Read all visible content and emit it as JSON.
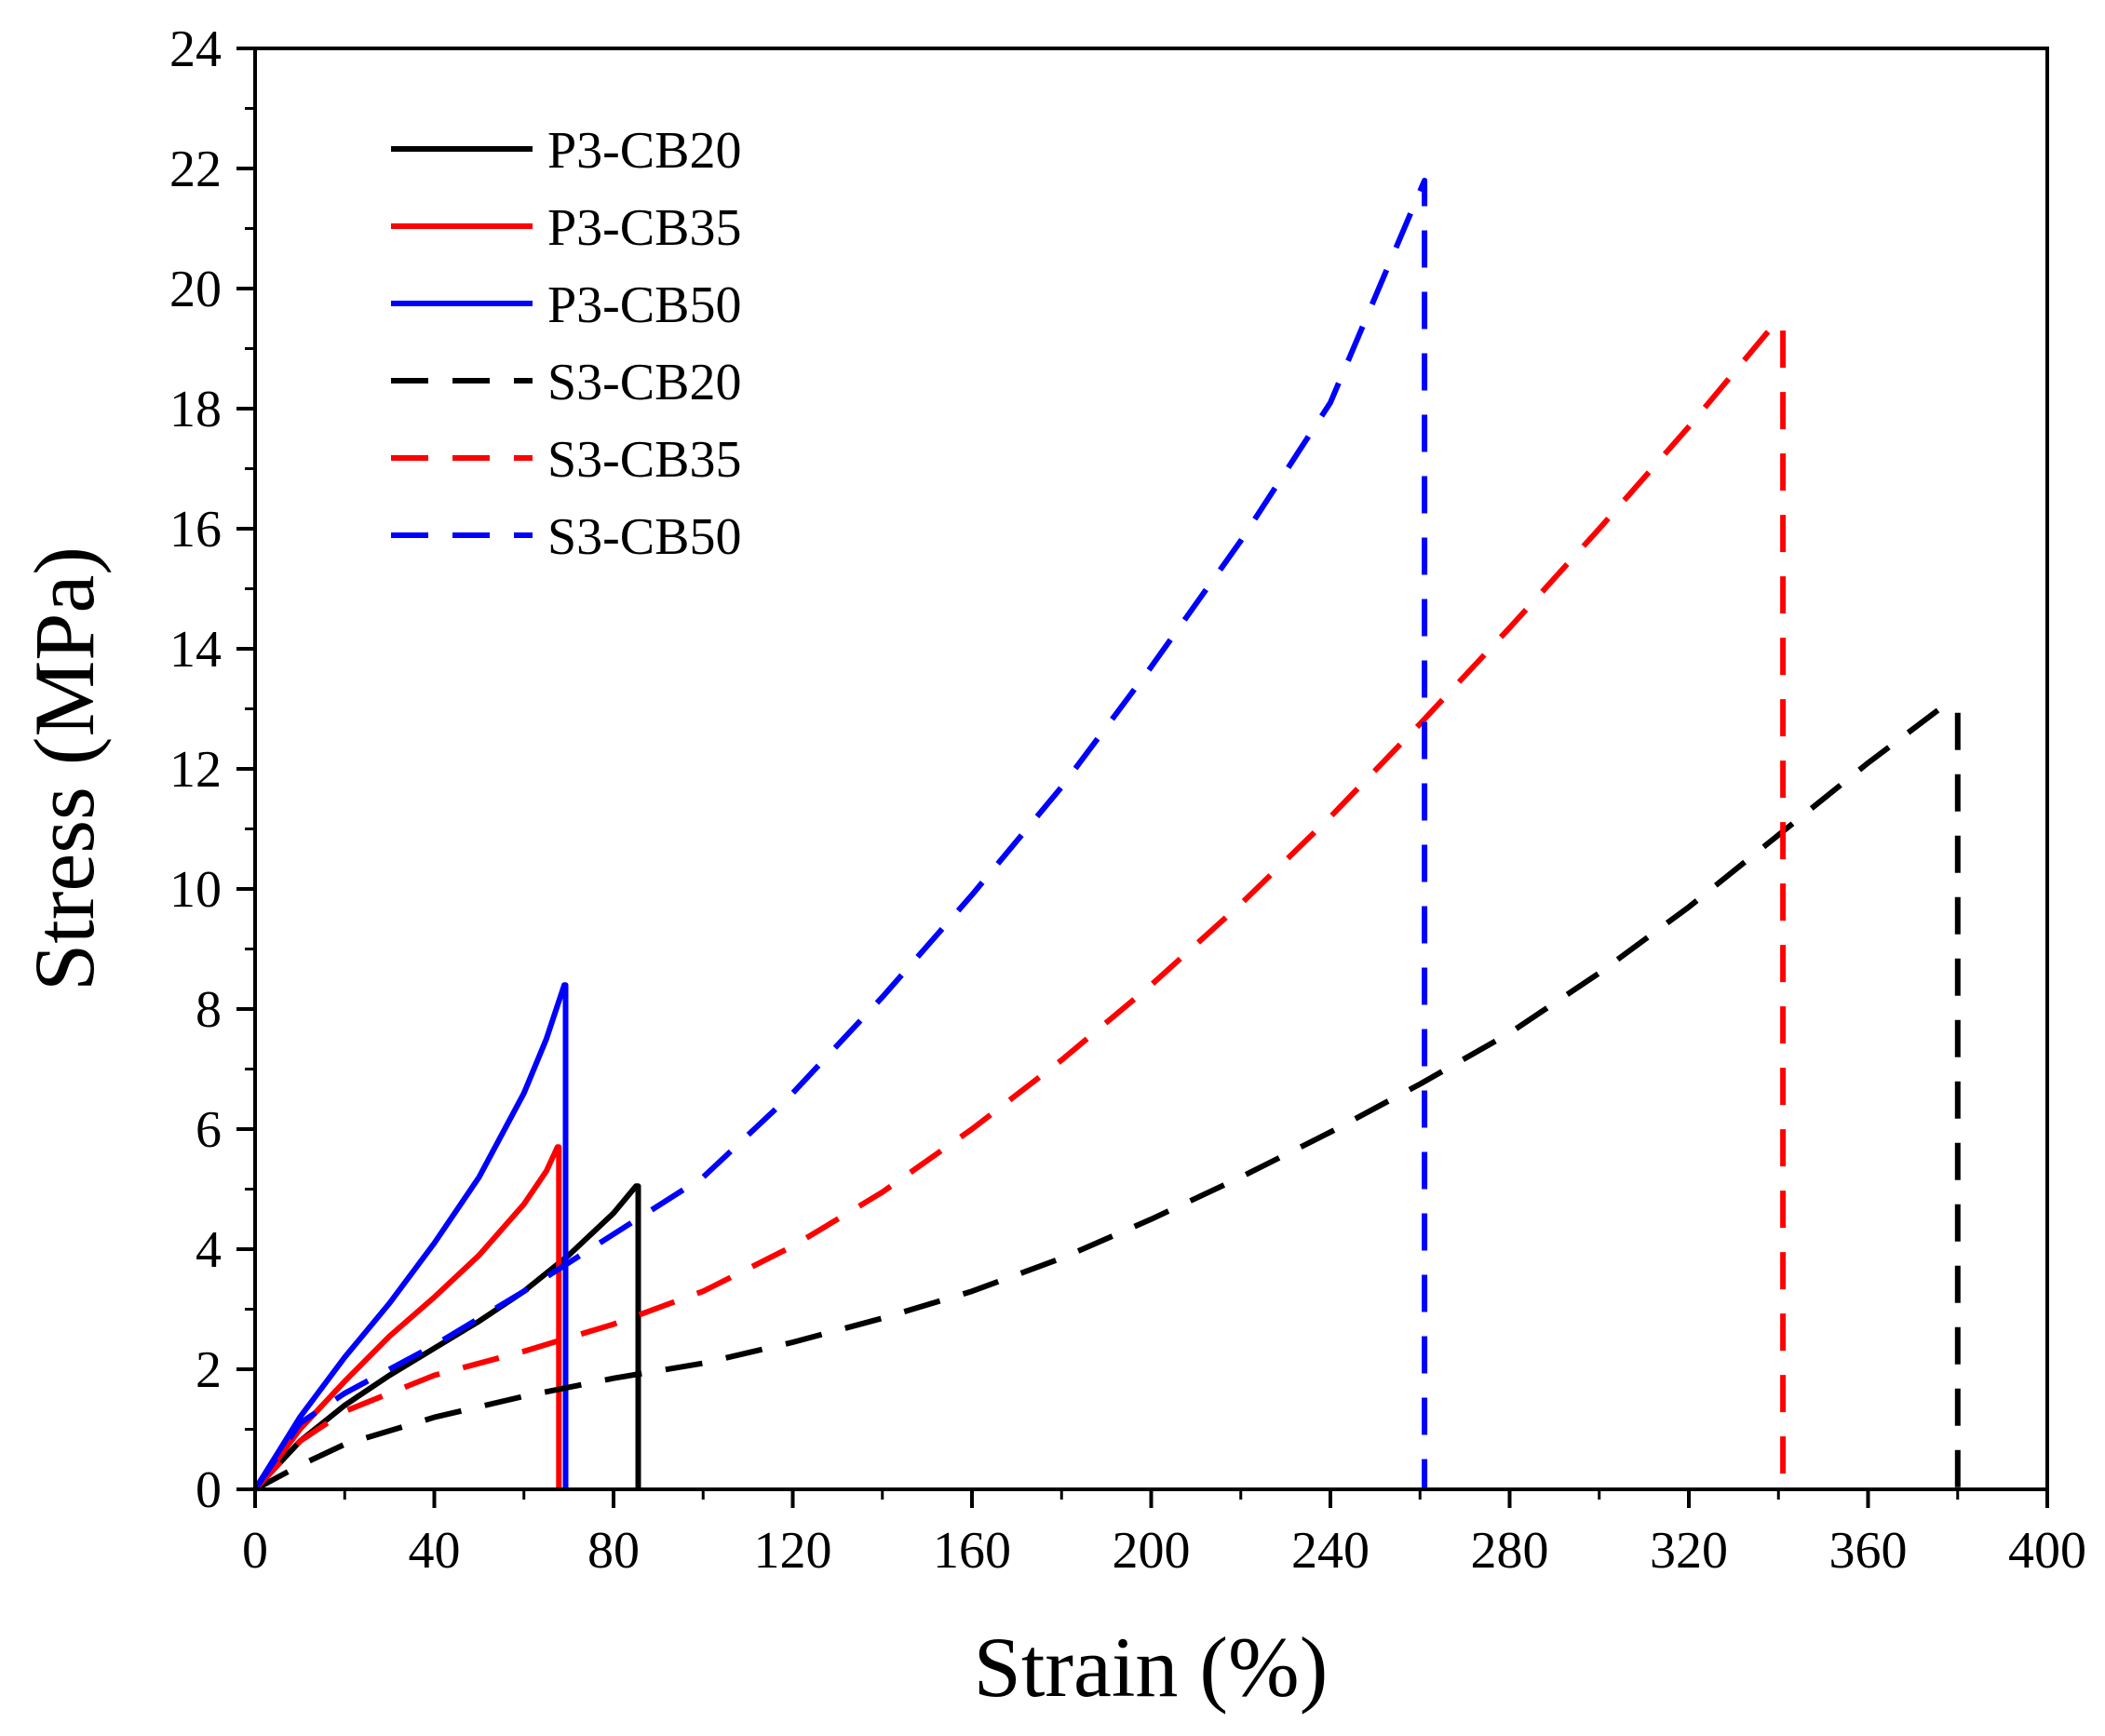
{
  "chart_data": {
    "type": "line",
    "title": "",
    "xlabel": "Strain (%)",
    "ylabel": "Stress (MPa)",
    "xlim": [
      0,
      400
    ],
    "ylim": [
      0,
      24
    ],
    "xticks": [
      0,
      40,
      80,
      120,
      160,
      200,
      240,
      280,
      320,
      360,
      400
    ],
    "yticks": [
      0,
      2,
      4,
      6,
      8,
      10,
      12,
      14,
      16,
      18,
      20,
      22,
      24
    ],
    "grid": false,
    "legend_position": "top-left",
    "series": [
      {
        "name": "P3-CB20",
        "color": "#000000",
        "style": "solid",
        "x": [
          0,
          5,
          10,
          20,
          30,
          40,
          50,
          60,
          70,
          80,
          85,
          85.5,
          85.5
        ],
        "y": [
          0,
          0.4,
          0.8,
          1.4,
          1.9,
          2.35,
          2.8,
          3.3,
          3.9,
          4.6,
          5.05,
          5.05,
          0
        ]
      },
      {
        "name": "P3-CB35",
        "color": "#ff0000",
        "style": "solid",
        "x": [
          0,
          5,
          10,
          20,
          30,
          40,
          50,
          60,
          65,
          67.5,
          67.8,
          67.8
        ],
        "y": [
          0,
          0.5,
          1.0,
          1.8,
          2.55,
          3.2,
          3.9,
          4.75,
          5.3,
          5.7,
          5.7,
          0
        ]
      },
      {
        "name": "P3-CB50",
        "color": "#0000ff",
        "style": "solid",
        "x": [
          0,
          5,
          10,
          20,
          30,
          40,
          50,
          60,
          65,
          69,
          69.3,
          69.3
        ],
        "y": [
          0,
          0.6,
          1.2,
          2.2,
          3.1,
          4.1,
          5.2,
          6.6,
          7.5,
          8.4,
          8.4,
          0
        ]
      },
      {
        "name": "S3-CB20",
        "color": "#000000",
        "style": "dashed",
        "x": [
          0,
          10,
          20,
          40,
          60,
          80,
          100,
          120,
          140,
          160,
          180,
          200,
          220,
          240,
          260,
          280,
          300,
          320,
          340,
          360,
          376,
          380,
          380
        ],
        "y": [
          0,
          0.4,
          0.75,
          1.2,
          1.55,
          1.85,
          2.1,
          2.45,
          2.85,
          3.3,
          3.85,
          4.5,
          5.2,
          5.95,
          6.75,
          7.6,
          8.6,
          9.7,
          10.9,
          12.1,
          13.0,
          13.0,
          0
        ]
      },
      {
        "name": "S3-CB35",
        "color": "#ff0000",
        "style": "dashed",
        "x": [
          0,
          10,
          20,
          40,
          60,
          80,
          100,
          120,
          140,
          160,
          180,
          200,
          220,
          240,
          260,
          280,
          300,
          320,
          339,
          341,
          341
        ],
        "y": [
          0,
          0.8,
          1.3,
          1.9,
          2.3,
          2.75,
          3.3,
          4.05,
          4.95,
          6.0,
          7.15,
          8.4,
          9.75,
          11.2,
          12.75,
          14.35,
          16.0,
          17.7,
          19.4,
          19.4,
          0
        ]
      },
      {
        "name": "S3-CB50",
        "color": "#0000ff",
        "style": "dashed",
        "x": [
          0,
          10,
          20,
          40,
          60,
          80,
          100,
          120,
          140,
          160,
          180,
          200,
          220,
          240,
          261,
          261,
          261
        ],
        "y": [
          0,
          1.1,
          1.6,
          2.4,
          3.3,
          4.25,
          5.2,
          6.6,
          8.2,
          9.9,
          11.7,
          13.7,
          15.8,
          18.1,
          21.8,
          21.8,
          0
        ]
      }
    ]
  }
}
